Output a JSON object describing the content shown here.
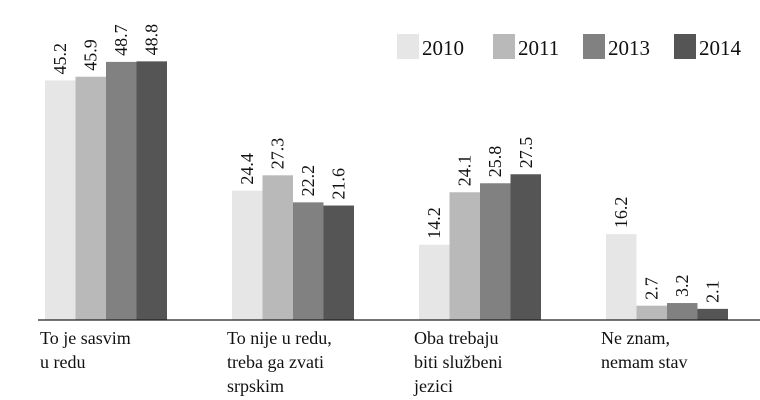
{
  "chart_data": {
    "type": "bar",
    "categories": [
      [
        "To je sasvim",
        "u redu"
      ],
      [
        "To nije u redu,",
        "treba ga zvati",
        "srpskim"
      ],
      [
        "Oba trebaju",
        "biti službeni",
        "jezici"
      ],
      [
        "Ne znam,",
        "nemam stav"
      ]
    ],
    "series": [
      {
        "name": "2010",
        "color": "#e6e6e6",
        "values": [
          45.2,
          24.4,
          14.2,
          16.2
        ]
      },
      {
        "name": "2011",
        "color": "#b9b9b9",
        "values": [
          45.9,
          27.3,
          24.1,
          2.7
        ]
      },
      {
        "name": "2013",
        "color": "#818181",
        "values": [
          48.7,
          22.2,
          25.8,
          3.2
        ]
      },
      {
        "name": "2014",
        "color": "#555555",
        "values": [
          48.8,
          21.6,
          27.5,
          2.1
        ]
      }
    ],
    "ylim": [
      0,
      60
    ],
    "legend": "top-right"
  }
}
